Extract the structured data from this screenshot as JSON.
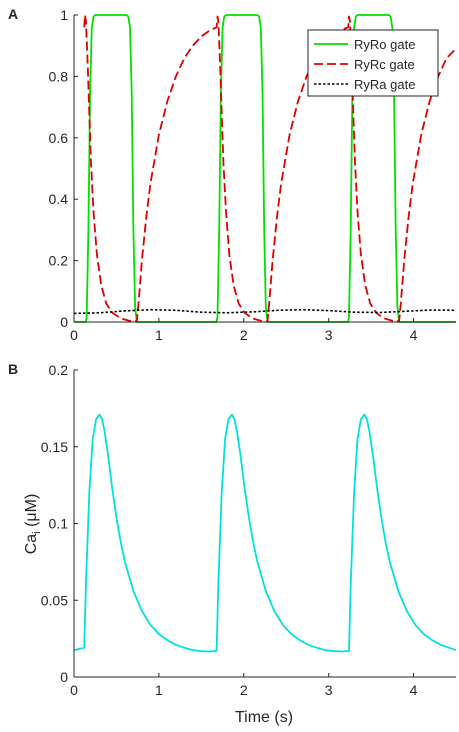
{
  "chart_data": [
    {
      "panel_label": "A",
      "type": "line",
      "xlabel": "",
      "ylabel": "",
      "xlim": [
        0,
        4.5
      ],
      "ylim": [
        0,
        1
      ],
      "xticks": [
        "0",
        "1",
        "2",
        "3",
        "4"
      ],
      "yticks": [
        "0",
        "0.2",
        "0.4",
        "0.6",
        "0.8",
        "1"
      ],
      "grid": false,
      "legend_position": "top-right",
      "series": [
        {
          "name": "RyRo gate",
          "color": "#00e000",
          "dash": "solid",
          "x": [
            0,
            0.14,
            0.15,
            0.17,
            0.19,
            0.21,
            0.23,
            0.25,
            0.62,
            0.64,
            0.66,
            0.68,
            0.7,
            0.72,
            0.74,
            1.68,
            1.69,
            1.71,
            1.73,
            1.75,
            1.77,
            1.79,
            2.16,
            2.18,
            2.2,
            2.22,
            2.24,
            2.26,
            2.28,
            3.23,
            3.24,
            3.26,
            3.28,
            3.3,
            3.32,
            3.34,
            3.71,
            3.73,
            3.75,
            3.77,
            3.79,
            3.81,
            3.83,
            4.5
          ],
          "y": [
            0,
            0,
            0.02,
            0.3,
            0.75,
            0.96,
            0.995,
            1,
            1,
            0.995,
            0.96,
            0.75,
            0.3,
            0.05,
            0,
            0,
            0.02,
            0.3,
            0.75,
            0.96,
            0.995,
            1,
            1,
            0.995,
            0.96,
            0.75,
            0.3,
            0.05,
            0,
            0,
            0.02,
            0.3,
            0.75,
            0.96,
            0.995,
            1,
            1,
            0.995,
            0.96,
            0.75,
            0.3,
            0.05,
            0,
            0
          ]
        },
        {
          "name": "RyRc gate",
          "color": "#dd0000",
          "dash": "dashed",
          "x": [
            0.12,
            0.13,
            0.14,
            0.16,
            0.18,
            0.2,
            0.23,
            0.27,
            0.32,
            0.38,
            0.45,
            0.55,
            0.65,
            0.74,
            0.76,
            0.8,
            0.85,
            0.9,
            1.0,
            1.1,
            1.2,
            1.3,
            1.4,
            1.5,
            1.6,
            1.68,
            1.69,
            1.7,
            1.72,
            1.74,
            1.76,
            1.79,
            1.83,
            1.88,
            1.94,
            2.01,
            2.1,
            2.2,
            2.28,
            2.3,
            2.34,
            2.39,
            2.44,
            2.54,
            2.64,
            2.74,
            2.84,
            2.94,
            3.04,
            3.14,
            3.23,
            3.24,
            3.25,
            3.27,
            3.29,
            3.31,
            3.34,
            3.38,
            3.43,
            3.49,
            3.56,
            3.65,
            3.75,
            3.83,
            3.85,
            3.89,
            3.94,
            3.99,
            4.09,
            4.19,
            4.29,
            4.39,
            4.5
          ],
          "y": [
            0.96,
            1.0,
            0.98,
            0.85,
            0.68,
            0.52,
            0.36,
            0.22,
            0.12,
            0.06,
            0.03,
            0.012,
            0.004,
            0.002,
            0.06,
            0.2,
            0.34,
            0.45,
            0.61,
            0.72,
            0.8,
            0.86,
            0.9,
            0.93,
            0.95,
            0.96,
            0.995,
            0.98,
            0.85,
            0.68,
            0.52,
            0.36,
            0.22,
            0.12,
            0.06,
            0.03,
            0.012,
            0.004,
            0.002,
            0.06,
            0.2,
            0.34,
            0.45,
            0.61,
            0.72,
            0.8,
            0.86,
            0.9,
            0.93,
            0.95,
            0.96,
            0.995,
            0.98,
            0.85,
            0.68,
            0.52,
            0.36,
            0.22,
            0.12,
            0.06,
            0.03,
            0.012,
            0.004,
            0.002,
            0.06,
            0.2,
            0.34,
            0.45,
            0.61,
            0.72,
            0.8,
            0.86,
            0.89
          ]
        },
        {
          "name": "RyRa gate",
          "color": "#000000",
          "dash": "dotted",
          "x": [
            0,
            0.3,
            0.6,
            0.9,
            1.2,
            1.5,
            1.8,
            2.1,
            2.4,
            2.7,
            3.0,
            3.3,
            3.6,
            3.9,
            4.2,
            4.5
          ],
          "y": [
            0.028,
            0.03,
            0.036,
            0.04,
            0.038,
            0.032,
            0.03,
            0.033,
            0.038,
            0.04,
            0.037,
            0.032,
            0.031,
            0.035,
            0.039,
            0.038
          ]
        }
      ]
    },
    {
      "panel_label": "B",
      "type": "line",
      "xlabel": "Time (s)",
      "ylabel_main": "Ca",
      "ylabel_sub": "i",
      "ylabel_unit": "(μM)",
      "xlim": [
        0,
        4.5
      ],
      "ylim": [
        0,
        0.2
      ],
      "xticks": [
        "0",
        "1",
        "2",
        "3",
        "4"
      ],
      "yticks": [
        "0",
        "0.05",
        "0.1",
        "0.15",
        "0.2"
      ],
      "grid": false,
      "series": [
        {
          "color": "#00e0e0",
          "dash": "solid",
          "x": [
            0,
            0.12,
            0.14,
            0.18,
            0.22,
            0.26,
            0.3,
            0.33,
            0.36,
            0.4,
            0.45,
            0.5,
            0.55,
            0.6,
            0.7,
            0.8,
            0.9,
            1.0,
            1.1,
            1.2,
            1.3,
            1.4,
            1.5,
            1.6,
            1.68,
            1.7,
            1.74,
            1.78,
            1.82,
            1.86,
            1.89,
            1.92,
            1.96,
            2.01,
            2.06,
            2.11,
            2.16,
            2.26,
            2.36,
            2.46,
            2.56,
            2.66,
            2.76,
            2.86,
            2.96,
            3.06,
            3.16,
            3.24,
            3.26,
            3.3,
            3.34,
            3.38,
            3.42,
            3.45,
            3.48,
            3.52,
            3.57,
            3.62,
            3.67,
            3.72,
            3.82,
            3.92,
            4.02,
            4.12,
            4.22,
            4.32,
            4.42,
            4.5
          ],
          "y": [
            0.0175,
            0.019,
            0.06,
            0.12,
            0.155,
            0.168,
            0.171,
            0.168,
            0.16,
            0.145,
            0.123,
            0.104,
            0.088,
            0.075,
            0.056,
            0.043,
            0.034,
            0.028,
            0.024,
            0.021,
            0.019,
            0.0175,
            0.0168,
            0.0166,
            0.017,
            0.06,
            0.12,
            0.155,
            0.168,
            0.171,
            0.168,
            0.16,
            0.145,
            0.123,
            0.104,
            0.088,
            0.075,
            0.056,
            0.043,
            0.034,
            0.028,
            0.024,
            0.021,
            0.019,
            0.0175,
            0.0168,
            0.0166,
            0.017,
            0.06,
            0.12,
            0.155,
            0.168,
            0.171,
            0.168,
            0.16,
            0.145,
            0.123,
            0.104,
            0.088,
            0.075,
            0.056,
            0.043,
            0.034,
            0.028,
            0.024,
            0.021,
            0.019,
            0.0175
          ]
        }
      ]
    }
  ]
}
